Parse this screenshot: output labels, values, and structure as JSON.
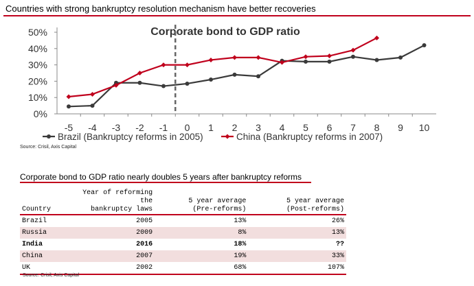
{
  "page": {
    "title": "Countries with strong bankruptcy resolution mechanism have better recoveries",
    "source1": "Source: Crisil, Axis Capital",
    "table_title": "Corporate bond to GDP ratio nearly doubles 5 years after bankruptcy reforms",
    "source2": "Source: Crisil, Axis Capital"
  },
  "colors": {
    "brazil": "#3a3a3a",
    "china": "#c0001c",
    "accent": "#c0001c",
    "shade": "#f2dede"
  },
  "chart_data": {
    "type": "line",
    "title": "Corporate bond to GDP ratio",
    "x": [
      -5,
      -4,
      -3,
      -2,
      -1,
      0,
      1,
      2,
      3,
      4,
      5,
      6,
      7,
      8,
      9,
      10
    ],
    "x_tick_labels": [
      "-5",
      "-4",
      "-3",
      "-2",
      "-1",
      "0",
      "1",
      "2",
      "3",
      "4",
      "5",
      "6",
      "7",
      "8",
      "9",
      "10"
    ],
    "y_tick_labels": [
      "0%",
      "10%",
      "20%",
      "30%",
      "40%",
      "50%"
    ],
    "ylim": [
      0,
      50
    ],
    "grid": false,
    "reference_line_x": -0.5,
    "legend_position": "bottom",
    "series": [
      {
        "name": "Brazil (Bankruptcy reforms in 2005)",
        "color": "#3a3a3a",
        "values": [
          4.5,
          5,
          19,
          19,
          17,
          18.5,
          21,
          24,
          23,
          32.5,
          32,
          32,
          35,
          33,
          34.5,
          42
        ]
      },
      {
        "name": "China (Bankruptcy reforms in 2007)",
        "color": "#c0001c",
        "values": [
          10.5,
          12,
          17.5,
          25,
          30,
          30,
          33,
          34.5,
          34.5,
          31.5,
          35,
          35.5,
          39,
          46.5,
          null,
          null
        ]
      }
    ]
  },
  "table": {
    "headers": {
      "country": "Country",
      "year_line1": "Year of reforming the",
      "year_line2": "bankruptcy laws",
      "pre_line1": "5 year average",
      "pre_line2": "(Pre-reforms)",
      "post_line1": "5 year average",
      "post_line2": "(Post-reforms)"
    },
    "rows": [
      {
        "country": "Brazil",
        "year": "2005",
        "pre": "13%",
        "post": "26%"
      },
      {
        "country": "Russia",
        "year": "2009",
        "pre": "8%",
        "post": "13%"
      },
      {
        "country": "India",
        "year": "2016",
        "pre": "18%",
        "post": "??"
      },
      {
        "country": "China",
        "year": "2007",
        "pre": "19%",
        "post": "33%"
      },
      {
        "country": "UK",
        "year": "2002",
        "pre": "68%",
        "post": "107%"
      }
    ]
  }
}
